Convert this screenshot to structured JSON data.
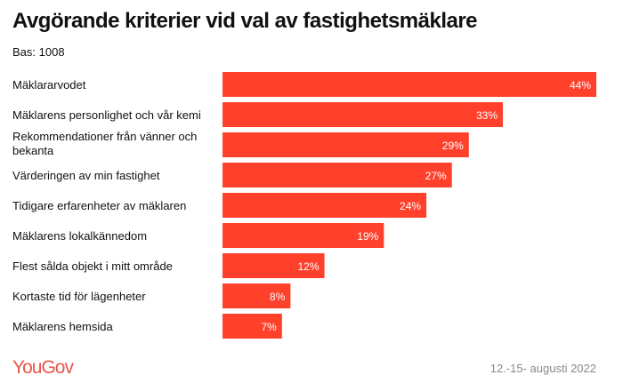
{
  "chart_data": {
    "type": "bar",
    "orientation": "horizontal",
    "title": "Avgörande kriterier vid val av fastighetsmäklare",
    "subtitle": "Bas: 1008",
    "categories": [
      "Mäklararvodet",
      "Mäklarens personlighet och vår kemi",
      "Rekommendationer från vänner och bekanta",
      "Värderingen av min fastighet",
      "Tidigare erfarenheter av mäklaren",
      "Mäklarens lokalkännedom",
      "Flest sålda objekt i mitt område",
      "Kortaste tid för lägenheter",
      "Mäklarens hemsida"
    ],
    "values": [
      44,
      33,
      29,
      27,
      24,
      19,
      12,
      8,
      7
    ],
    "data_labels": [
      "44%",
      "33%",
      "29%",
      "27%",
      "24%",
      "19%",
      "12%",
      "8%",
      "7%"
    ],
    "unit": "%",
    "xlim": [
      0,
      44
    ],
    "grid": false,
    "bar_color": "#ff412c"
  },
  "footer": {
    "logo": "YouGov",
    "date": "12.-15- augusti 2022"
  }
}
